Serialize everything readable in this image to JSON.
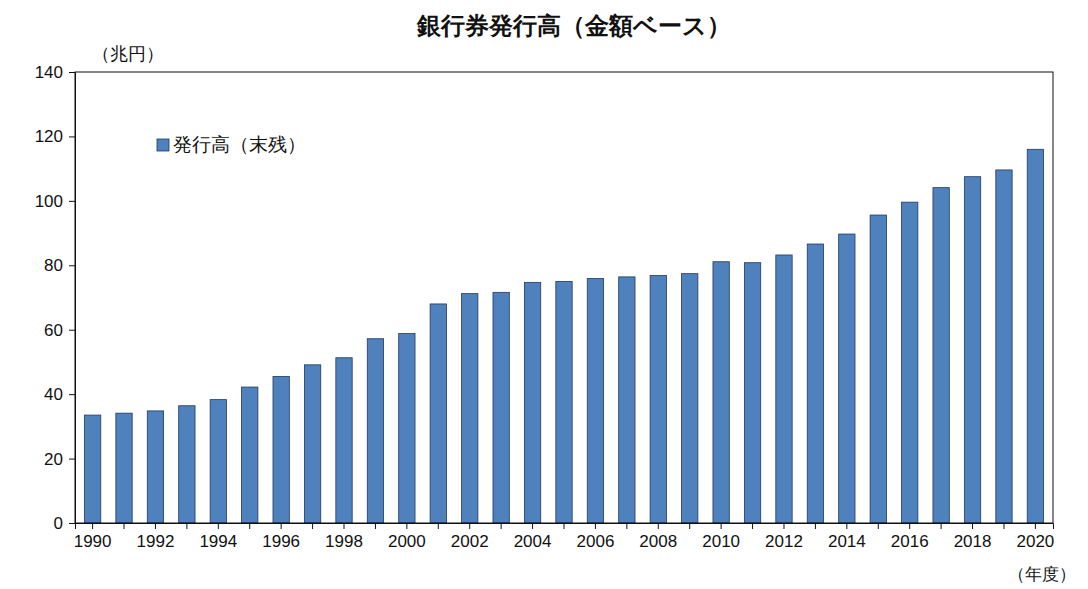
{
  "chart_data": {
    "type": "bar",
    "title": "銀行券発行高（金額ベース）",
    "y_label": "（兆円）",
    "x_label": "（年度）",
    "categories": [
      "1990",
      null,
      "1992",
      null,
      "1994",
      null,
      "1996",
      null,
      "1998",
      null,
      "2000",
      null,
      "2002",
      null,
      "2004",
      null,
      "2006",
      null,
      "2008",
      null,
      "2010",
      null,
      "2012",
      null,
      "2014",
      null,
      "2016",
      null,
      "2018",
      null,
      "2020"
    ],
    "series": [
      {
        "name": "発行高（末残）",
        "color": "#4f81bd",
        "values": [
          33.5,
          34.1,
          34.8,
          36.4,
          38.3,
          42.2,
          45.5,
          49.1,
          51.3,
          57.2,
          58.8,
          68.0,
          71.2,
          71.6,
          74.7,
          75.0,
          75.9,
          76.4,
          76.8,
          77.4,
          81.1,
          80.8,
          83.2,
          86.6,
          89.7,
          95.6,
          99.6,
          104.1,
          107.5,
          109.6,
          116.0
        ]
      }
    ],
    "ylim": [
      0,
      140
    ],
    "yticks": [
      0,
      20,
      40,
      60,
      80,
      100,
      120,
      140
    ],
    "grid": false,
    "legend": "upper left"
  }
}
